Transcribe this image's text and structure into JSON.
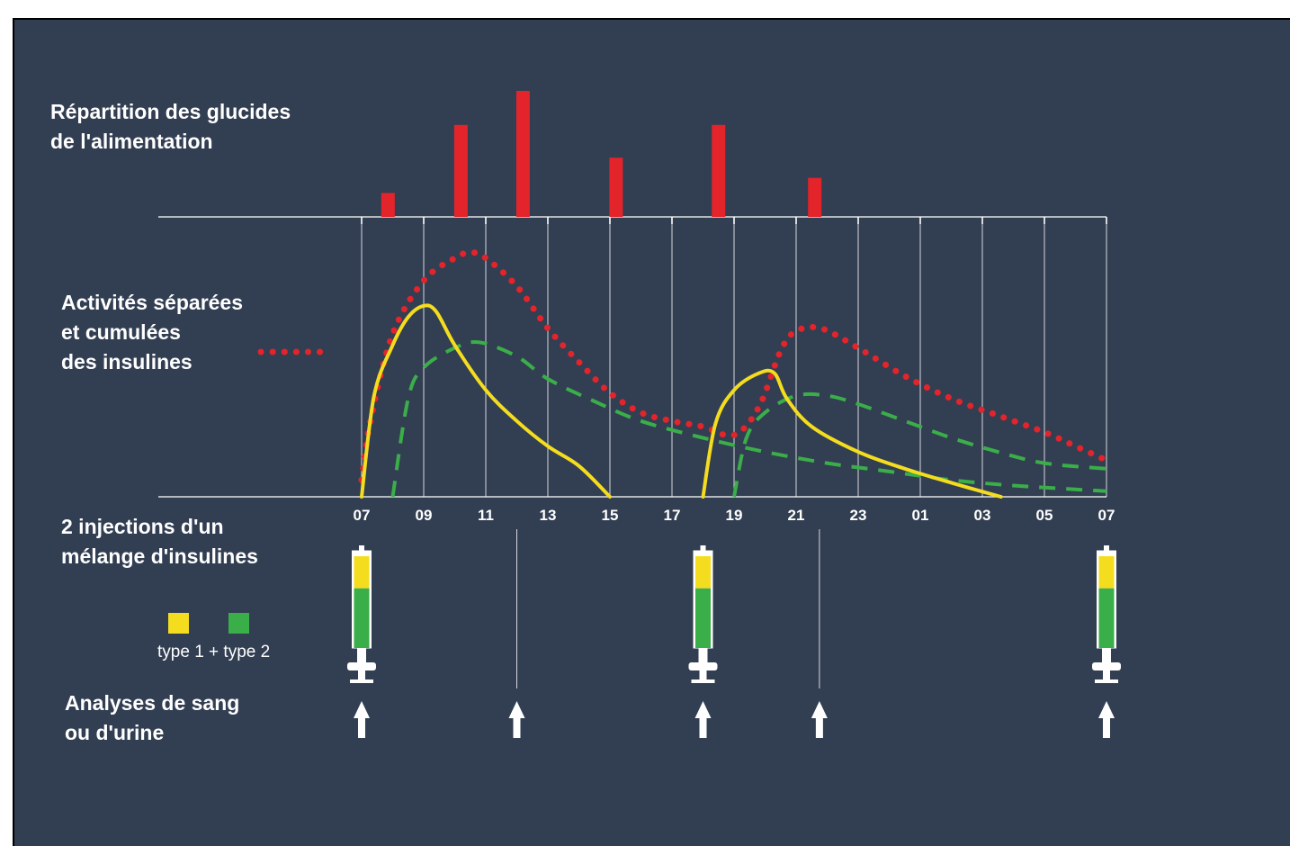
{
  "labels": {
    "meals": [
      "Répartition des glucides",
      "de l'alimentation"
    ],
    "activity": [
      "Activités séparées",
      "et cumulées",
      "des insulines"
    ],
    "injections": [
      "2 injections d'un",
      "mélange d'insulines"
    ],
    "analyses": [
      "Analyses de sang",
      "ou d'urine"
    ]
  },
  "legend": {
    "text": "type 1 + type 2",
    "type1_color": "#f4dc1f",
    "type2_color": "#3aae49"
  },
  "colors": {
    "background": "#323e52",
    "meal_bars": "#e3242b",
    "cumulative_curve": "#e3242b",
    "type1_curve": "#f4dc1f",
    "type2_curve": "#3aae49",
    "grid": "#ffffff"
  },
  "chart_data": {
    "type": "line",
    "x_ticks": [
      "07",
      "09",
      "11",
      "13",
      "15",
      "17",
      "19",
      "21",
      "23",
      "01",
      "03",
      "05",
      "07"
    ],
    "x_unit": "hours since 07:00",
    "meals": {
      "type": "bar",
      "hours": [
        0.85,
        3.2,
        5.2,
        8.2,
        11.5,
        14.6
      ],
      "relative_amounts": [
        0.19,
        0.73,
        1.0,
        0.47,
        0.73,
        0.31
      ]
    },
    "series": [
      {
        "key": "cumulative",
        "style": "dotted",
        "color": "#e3242b",
        "points": [
          [
            0,
            0.06
          ],
          [
            0.3,
            0.28
          ],
          [
            1,
            0.58
          ],
          [
            2,
            0.77
          ],
          [
            3,
            0.85
          ],
          [
            3.5,
            0.87
          ],
          [
            4,
            0.85
          ],
          [
            5,
            0.75
          ],
          [
            6,
            0.6
          ],
          [
            7,
            0.48
          ],
          [
            8,
            0.37
          ],
          [
            9,
            0.3
          ],
          [
            10,
            0.27
          ],
          [
            11,
            0.25
          ],
          [
            12,
            0.22
          ],
          [
            12.8,
            0.32
          ],
          [
            13.5,
            0.52
          ],
          [
            14,
            0.59
          ],
          [
            14.8,
            0.6
          ],
          [
            16,
            0.53
          ],
          [
            17.5,
            0.43
          ],
          [
            19,
            0.35
          ],
          [
            20.5,
            0.29
          ],
          [
            22,
            0.23
          ],
          [
            23,
            0.18
          ],
          [
            24,
            0.13
          ]
        ]
      },
      {
        "key": "type1_morning",
        "style": "solid",
        "color": "#f4dc1f",
        "points": [
          [
            0,
            0.0
          ],
          [
            0.4,
            0.36
          ],
          [
            1,
            0.54
          ],
          [
            1.5,
            0.64
          ],
          [
            2,
            0.68
          ],
          [
            2.4,
            0.66
          ],
          [
            3,
            0.54
          ],
          [
            4,
            0.38
          ],
          [
            5,
            0.27
          ],
          [
            6,
            0.18
          ],
          [
            7,
            0.11
          ],
          [
            8,
            0.0
          ]
        ]
      },
      {
        "key": "type2_morning",
        "style": "dashed",
        "color": "#3aae49",
        "points": [
          [
            1,
            0.0
          ],
          [
            1.5,
            0.35
          ],
          [
            2,
            0.46
          ],
          [
            3,
            0.53
          ],
          [
            3.8,
            0.55
          ],
          [
            5,
            0.5
          ],
          [
            6,
            0.42
          ],
          [
            7.5,
            0.34
          ],
          [
            9,
            0.27
          ],
          [
            11,
            0.21
          ],
          [
            13,
            0.16
          ],
          [
            15,
            0.12
          ],
          [
            17,
            0.09
          ],
          [
            19,
            0.06
          ],
          [
            21,
            0.04
          ],
          [
            24,
            0.02
          ]
        ]
      },
      {
        "key": "type1_evening",
        "style": "solid",
        "color": "#f4dc1f",
        "points": [
          [
            11,
            0.0
          ],
          [
            11.4,
            0.26
          ],
          [
            12,
            0.38
          ],
          [
            12.8,
            0.44
          ],
          [
            13.3,
            0.44
          ],
          [
            13.7,
            0.35
          ],
          [
            14.5,
            0.25
          ],
          [
            16,
            0.16
          ],
          [
            17.5,
            0.1
          ],
          [
            19,
            0.05
          ],
          [
            20.6,
            0.0
          ]
        ]
      },
      {
        "key": "type2_evening",
        "style": "dashed",
        "color": "#3aae49",
        "points": [
          [
            12,
            0.0
          ],
          [
            12.4,
            0.21
          ],
          [
            13,
            0.3
          ],
          [
            14,
            0.36
          ],
          [
            15,
            0.36
          ],
          [
            16,
            0.33
          ],
          [
            17.5,
            0.27
          ],
          [
            19,
            0.21
          ],
          [
            20.5,
            0.16
          ],
          [
            22,
            0.12
          ],
          [
            24,
            0.1
          ]
        ]
      }
    ]
  },
  "injections": [
    {
      "hour": 0,
      "type1_fraction": 0.35,
      "type2_fraction": 0.65
    },
    {
      "hour": 11,
      "type1_fraction": 0.35,
      "type2_fraction": 0.65
    },
    {
      "hour": 24,
      "type1_fraction": 0.35,
      "type2_fraction": 0.65
    }
  ],
  "analyses_hours": [
    0,
    5,
    11,
    14.75,
    24
  ]
}
